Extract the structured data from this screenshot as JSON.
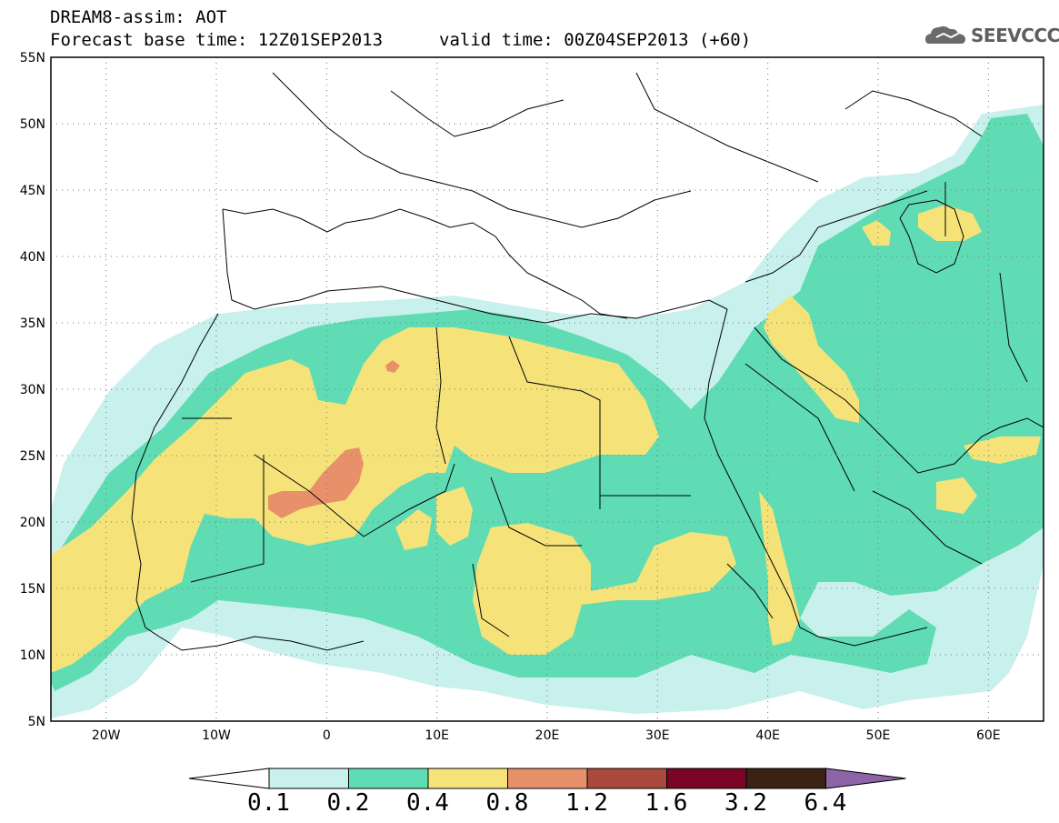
{
  "header": {
    "title": "DREAM8-assim: AOT",
    "base_time": "Forecast base time: 12Z01SEP2013",
    "valid_time": "valid time: 00Z04SEP2013 (+60)"
  },
  "logo": {
    "text": "SEEVCCC",
    "icon": "cloud-icon"
  },
  "map": {
    "variable": "AOT",
    "projection": "lat-lon",
    "lon_range": [
      -25,
      65
    ],
    "lat_range": [
      5,
      55
    ],
    "lon_ticks": [
      "20W",
      "10W",
      "0",
      "10E",
      "20E",
      "30E",
      "40E",
      "50E",
      "60E"
    ],
    "lat_ticks": [
      "5N",
      "10N",
      "15N",
      "20N",
      "25N",
      "30N",
      "35N",
      "40N",
      "45N",
      "50N",
      "55N"
    ],
    "grid": "dotted"
  },
  "colorbar": {
    "levels": [
      "0.1",
      "0.2",
      "0.4",
      "0.8",
      "1.2",
      "1.6",
      "3.2",
      "6.4"
    ],
    "colors": [
      "#ffffff",
      "#c8f0ec",
      "#5fdcb4",
      "#f5e37a",
      "#e8906a",
      "#a94a3c",
      "#7a0524",
      "#3b2212",
      "#8e64a8"
    ]
  }
}
